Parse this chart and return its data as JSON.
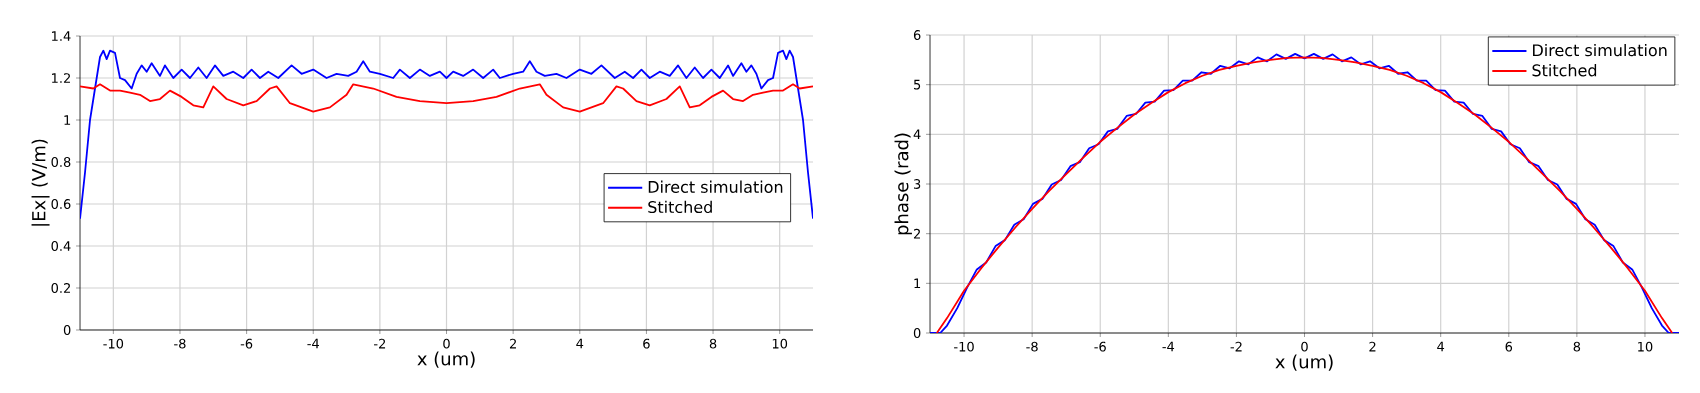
{
  "chart_data": [
    {
      "type": "line",
      "xlabel": "x (um)",
      "ylabel": "|Ex| (V/m)",
      "xlim": [
        -11,
        11
      ],
      "ylim": [
        0,
        1.4
      ],
      "xticks": [
        -10,
        -8,
        -6,
        -4,
        -2,
        0,
        2,
        4,
        6,
        8,
        10
      ],
      "yticks": [
        0,
        0.2,
        0.4,
        0.6,
        0.8,
        1,
        1.2,
        1.4
      ],
      "grid": true,
      "legend": "right",
      "series": [
        {
          "name": "Direct simulation",
          "color": "#0000ff",
          "x": [
            -11,
            -10.85,
            -10.7,
            -10.55,
            -10.4,
            -10.3,
            -10.2,
            -10.1,
            -9.95,
            -9.8,
            -9.65,
            -9.45,
            -9.3,
            -9.15,
            -9,
            -8.85,
            -8.6,
            -8.45,
            -8.2,
            -7.95,
            -7.7,
            -7.45,
            -7.2,
            -6.95,
            -6.7,
            -6.4,
            -6.1,
            -5.85,
            -5.6,
            -5.35,
            -5.05,
            -4.65,
            -4.35,
            -4,
            -3.6,
            -3.3,
            -2.95,
            -2.7,
            -2.5,
            -2.3,
            -2,
            -1.6,
            -1.4,
            -1.1,
            -0.8,
            -0.5,
            -0.2,
            0,
            0.2,
            0.5,
            0.8,
            1.1,
            1.4,
            1.6,
            2,
            2.3,
            2.5,
            2.7,
            2.95,
            3.3,
            3.6,
            4,
            4.35,
            4.65,
            5.05,
            5.35,
            5.6,
            5.85,
            6.1,
            6.4,
            6.7,
            6.95,
            7.2,
            7.45,
            7.7,
            7.95,
            8.2,
            8.45,
            8.6,
            8.85,
            9,
            9.15,
            9.3,
            9.45,
            9.65,
            9.8,
            9.95,
            10.1,
            10.2,
            10.3,
            10.4,
            10.55,
            10.7,
            10.85,
            11
          ],
          "values": [
            0.53,
            0.75,
            1.0,
            1.15,
            1.3,
            1.33,
            1.29,
            1.33,
            1.32,
            1.2,
            1.19,
            1.15,
            1.22,
            1.26,
            1.23,
            1.27,
            1.21,
            1.26,
            1.2,
            1.24,
            1.2,
            1.25,
            1.2,
            1.26,
            1.21,
            1.23,
            1.2,
            1.24,
            1.2,
            1.23,
            1.2,
            1.26,
            1.22,
            1.24,
            1.2,
            1.22,
            1.21,
            1.23,
            1.28,
            1.23,
            1.22,
            1.2,
            1.24,
            1.2,
            1.24,
            1.21,
            1.23,
            1.2,
            1.23,
            1.21,
            1.24,
            1.2,
            1.24,
            1.2,
            1.22,
            1.23,
            1.28,
            1.23,
            1.21,
            1.22,
            1.2,
            1.24,
            1.22,
            1.26,
            1.2,
            1.23,
            1.2,
            1.24,
            1.2,
            1.23,
            1.21,
            1.26,
            1.2,
            1.25,
            1.2,
            1.24,
            1.2,
            1.26,
            1.21,
            1.27,
            1.23,
            1.26,
            1.22,
            1.15,
            1.19,
            1.2,
            1.32,
            1.33,
            1.29,
            1.33,
            1.3,
            1.15,
            1.0,
            0.75,
            0.53
          ]
        },
        {
          "name": "Stitched",
          "color": "#ff0000",
          "x": [
            -11,
            -10.6,
            -10.4,
            -10.1,
            -9.8,
            -9.5,
            -9.2,
            -8.9,
            -8.6,
            -8.3,
            -7.95,
            -7.6,
            -7.3,
            -7,
            -6.6,
            -6.1,
            -5.7,
            -5.3,
            -5.1,
            -4.7,
            -4,
            -3.5,
            -3,
            -2.8,
            -2.2,
            -1.5,
            -0.8,
            0,
            0.8,
            1.5,
            2.2,
            2.8,
            3,
            3.5,
            4,
            4.7,
            5.1,
            5.3,
            5.7,
            6.1,
            6.6,
            7,
            7.3,
            7.6,
            7.95,
            8.3,
            8.6,
            8.9,
            9.2,
            9.5,
            9.8,
            10.1,
            10.4,
            10.6,
            11
          ],
          "values": [
            1.16,
            1.15,
            1.17,
            1.14,
            1.14,
            1.13,
            1.12,
            1.09,
            1.1,
            1.14,
            1.11,
            1.07,
            1.06,
            1.16,
            1.1,
            1.07,
            1.09,
            1.15,
            1.16,
            1.08,
            1.04,
            1.06,
            1.12,
            1.17,
            1.15,
            1.11,
            1.09,
            1.08,
            1.09,
            1.11,
            1.15,
            1.17,
            1.12,
            1.06,
            1.04,
            1.08,
            1.16,
            1.15,
            1.09,
            1.07,
            1.1,
            1.16,
            1.06,
            1.07,
            1.11,
            1.14,
            1.1,
            1.09,
            1.12,
            1.13,
            1.14,
            1.14,
            1.17,
            1.15,
            1.16
          ]
        }
      ]
    },
    {
      "type": "line",
      "xlabel": "x (um)",
      "ylabel": "phase (rad)",
      "xlim": [
        -11,
        11
      ],
      "ylim": [
        0,
        6
      ],
      "xticks": [
        -10,
        -8,
        -6,
        -4,
        -2,
        0,
        2,
        4,
        6,
        8,
        10
      ],
      "yticks": [
        0,
        1,
        2,
        3,
        4,
        5,
        6
      ],
      "grid": true,
      "legend": "top right",
      "series": [
        {
          "name": "Direct simulation",
          "color": "#0000ff",
          "x": [
            -11,
            -10.7,
            -10.5,
            -10.2,
            -9.9,
            -9.625,
            -9.35,
            -9.075,
            -8.8,
            -8.525,
            -8.25,
            -7.975,
            -7.7,
            -7.425,
            -7.15,
            -6.875,
            -6.6,
            -6.325,
            -6.05,
            -5.775,
            -5.5,
            -5.225,
            -4.95,
            -4.675,
            -4.4,
            -4.125,
            -3.85,
            -3.575,
            -3.3,
            -3.025,
            -2.75,
            -2.475,
            -2.2,
            -1.925,
            -1.65,
            -1.375,
            -1.1,
            -0.825,
            -0.55,
            -0.275,
            0,
            0.275,
            0.55,
            0.825,
            1.1,
            1.375,
            1.65,
            1.925,
            2.2,
            2.475,
            2.75,
            3.025,
            3.3,
            3.575,
            3.85,
            4.125,
            4.4,
            4.675,
            4.95,
            5.225,
            5.5,
            5.775,
            6.05,
            6.325,
            6.6,
            6.875,
            7.15,
            7.425,
            7.7,
            7.975,
            8.25,
            8.525,
            8.8,
            9.075,
            9.35,
            9.625,
            9.9,
            10.2,
            10.5,
            10.7,
            11
          ],
          "values": [
            0,
            0,
            0.15,
            0.5,
            0.93,
            1.28,
            1.42,
            1.75,
            1.87,
            2.18,
            2.29,
            2.6,
            2.7,
            2.99,
            3.08,
            3.36,
            3.44,
            3.72,
            3.8,
            4.06,
            4.11,
            4.37,
            4.41,
            4.64,
            4.66,
            4.88,
            4.89,
            5.08,
            5.08,
            5.25,
            5.22,
            5.38,
            5.33,
            5.47,
            5.41,
            5.55,
            5.47,
            5.61,
            5.52,
            5.62,
            5.53,
            5.62,
            5.52,
            5.61,
            5.47,
            5.55,
            5.41,
            5.47,
            5.33,
            5.38,
            5.22,
            5.25,
            5.08,
            5.08,
            4.89,
            4.88,
            4.66,
            4.64,
            4.41,
            4.37,
            4.11,
            4.06,
            3.8,
            3.72,
            3.44,
            3.36,
            3.08,
            2.99,
            2.7,
            2.6,
            2.29,
            2.18,
            1.87,
            1.75,
            1.42,
            1.28,
            0.93,
            0.5,
            0.15,
            0,
            0
          ]
        },
        {
          "name": "Stitched",
          "color": "#ff0000",
          "x": [
            -10.8,
            -10.5,
            -10,
            -9.5,
            -9,
            -8.5,
            -8,
            -7.5,
            -7,
            -6.5,
            -6,
            -5.5,
            -5,
            -4.5,
            -4,
            -3.5,
            -3,
            -2.5,
            -2,
            -1.5,
            -1,
            -0.5,
            0,
            0.5,
            1,
            1.5,
            2,
            2.5,
            3,
            3.5,
            4,
            4.5,
            5,
            5.5,
            6,
            6.5,
            7,
            7.5,
            8,
            8.5,
            9,
            9.5,
            10,
            10.5,
            10.8
          ],
          "values": [
            0,
            0.3,
            0.85,
            1.3,
            1.72,
            2.12,
            2.5,
            2.86,
            3.2,
            3.53,
            3.85,
            4.13,
            4.4,
            4.63,
            4.85,
            5.03,
            5.18,
            5.3,
            5.38,
            5.45,
            5.5,
            5.54,
            5.55,
            5.54,
            5.5,
            5.45,
            5.38,
            5.3,
            5.18,
            5.03,
            4.85,
            4.63,
            4.4,
            4.13,
            3.85,
            3.53,
            3.2,
            2.86,
            2.5,
            2.12,
            1.72,
            1.3,
            0.85,
            0.3,
            0
          ]
        }
      ]
    }
  ]
}
